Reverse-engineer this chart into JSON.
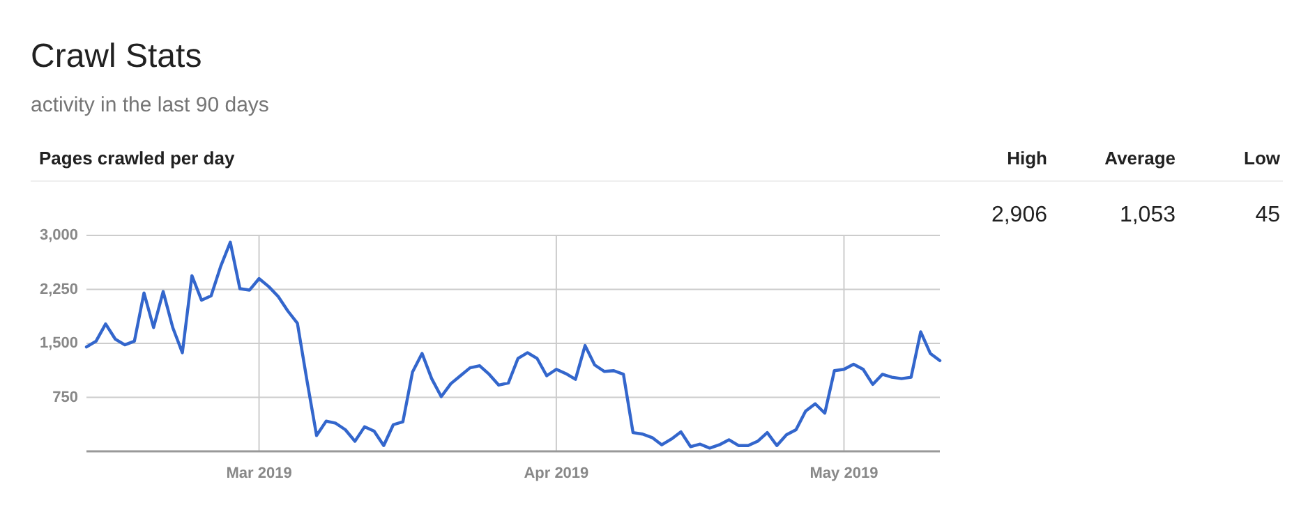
{
  "chart_data": {
    "type": "line",
    "title": "Crawl Stats",
    "subtitle": "activity in the last 90 days",
    "ylabel": "Pages crawled per day",
    "annotations": [
      "High",
      "Average",
      "Low",
      "2,906",
      "1,053",
      "45"
    ],
    "x": [
      "2019-02-11",
      "2019-02-12",
      "2019-02-13",
      "2019-02-14",
      "2019-02-15",
      "2019-02-16",
      "2019-02-17",
      "2019-02-18",
      "2019-02-19",
      "2019-02-20",
      "2019-02-21",
      "2019-02-22",
      "2019-02-23",
      "2019-02-24",
      "2019-02-25",
      "2019-02-26",
      "2019-02-27",
      "2019-02-28",
      "2019-03-01",
      "2019-03-02",
      "2019-03-03",
      "2019-03-04",
      "2019-03-05",
      "2019-03-06",
      "2019-03-07",
      "2019-03-08",
      "2019-03-09",
      "2019-03-10",
      "2019-03-11",
      "2019-03-12",
      "2019-03-13",
      "2019-03-14",
      "2019-03-15",
      "2019-03-16",
      "2019-03-17",
      "2019-03-18",
      "2019-03-19",
      "2019-03-20",
      "2019-03-21",
      "2019-03-22",
      "2019-03-23",
      "2019-03-24",
      "2019-03-25",
      "2019-03-26",
      "2019-03-27",
      "2019-03-28",
      "2019-03-29",
      "2019-03-30",
      "2019-03-31",
      "2019-04-01",
      "2019-04-02",
      "2019-04-03",
      "2019-04-04",
      "2019-04-05",
      "2019-04-06",
      "2019-04-07",
      "2019-04-08",
      "2019-04-09",
      "2019-04-10",
      "2019-04-11",
      "2019-04-12",
      "2019-04-13",
      "2019-04-14",
      "2019-04-15",
      "2019-04-16",
      "2019-04-17",
      "2019-04-18",
      "2019-04-19",
      "2019-04-20",
      "2019-04-21",
      "2019-04-22",
      "2019-04-23",
      "2019-04-24",
      "2019-04-25",
      "2019-04-26",
      "2019-04-27",
      "2019-04-28",
      "2019-04-29",
      "2019-04-30",
      "2019-05-01",
      "2019-05-02",
      "2019-05-03",
      "2019-05-04",
      "2019-05-05",
      "2019-05-06",
      "2019-05-07",
      "2019-05-08",
      "2019-05-09",
      "2019-05-10",
      "2019-05-11"
    ],
    "series": [
      {
        "color": "#3366cc",
        "values": [
          1450,
          1530,
          1770,
          1560,
          1480,
          1530,
          2200,
          1720,
          2220,
          1720,
          1370,
          2440,
          2100,
          2160,
          2570,
          2906,
          2260,
          2240,
          2400,
          2290,
          2150,
          1950,
          1780,
          980,
          220,
          420,
          390,
          300,
          140,
          340,
          280,
          80,
          370,
          410,
          1100,
          1360,
          1010,
          760,
          940,
          1050,
          1160,
          1190,
          1070,
          920,
          950,
          1290,
          1370,
          1290,
          1050,
          1140,
          1080,
          1000,
          1470,
          1200,
          1110,
          1120,
          1070,
          260,
          240,
          190,
          90,
          170,
          270,
          65,
          100,
          45,
          90,
          160,
          80,
          80,
          140,
          260,
          80,
          230,
          300,
          560,
          660,
          530,
          1120,
          1140,
          1210,
          1140,
          930,
          1070,
          1030,
          1010,
          1030,
          1660,
          1360,
          1260
        ]
      }
    ],
    "xlim": [
      "2019-02-11",
      "2019-05-11"
    ],
    "xticks": [
      {
        "value": "2019-03-01",
        "label": "Mar 2019"
      },
      {
        "value": "2019-04-01",
        "label": "Apr 2019"
      },
      {
        "value": "2019-05-01",
        "label": "May 2019"
      }
    ],
    "ylim": [
      0,
      3000
    ],
    "yticks": [
      {
        "value": 0,
        "label": null
      },
      {
        "value": 750,
        "label": "750"
      },
      {
        "value": 1500,
        "label": "1,500"
      },
      {
        "value": 2250,
        "label": "2,250"
      },
      {
        "value": 3000,
        "label": "3,000"
      }
    ],
    "grid": true,
    "marker": "none",
    "line_style": "solid"
  }
}
